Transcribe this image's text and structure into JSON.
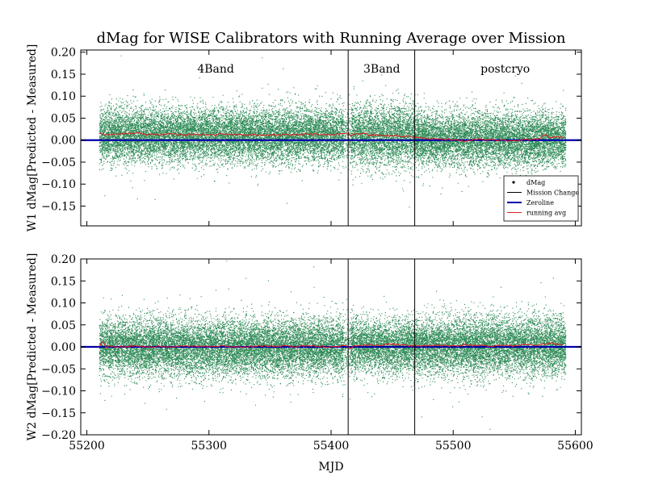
{
  "chart_data": {
    "title": "dMag for WISE Calibrators with Running Average over Mission",
    "xlabel": "MJD",
    "type": "scatter",
    "xlim": [
      55195,
      55605
    ],
    "x_ticks": [
      "55200",
      "55300",
      "55400",
      "55500",
      "55600"
    ],
    "mission_changes": [
      55414.0,
      55468.5
    ],
    "regions": [
      {
        "label": "4Band",
        "x": 55305
      },
      {
        "label": "3Band",
        "x": 55441
      },
      {
        "label": "postcryo",
        "x": 55537
      }
    ],
    "colors": {
      "dmag": "#2e8b57",
      "running_avg": "#dd2222",
      "zeroline": "#0000aa",
      "mission_change": "#000000"
    },
    "legend": {
      "placement": "lower-right",
      "entries": [
        {
          "label": "dMag",
          "style": "dmag"
        },
        {
          "label": "Mission Change",
          "style": "mission_change"
        },
        {
          "label": "Zeroline",
          "style": "zeroline"
        },
        {
          "label": "running avg",
          "style": "running_avg"
        }
      ]
    },
    "panels": [
      {
        "name": "w1",
        "ylabel": "W1 dMag[Predicted - Measured]",
        "ylim": [
          -0.195,
          0.205
        ],
        "y_ticks": [
          "0.20",
          "0.15",
          "0.10",
          "0.05",
          "0.00",
          "−0.05",
          "−0.10",
          "−0.15"
        ],
        "y_tick_values": [
          0.2,
          0.15,
          0.1,
          0.05,
          0.0,
          -0.05,
          -0.1,
          -0.15
        ],
        "show_legend": true,
        "show_region_labels": true,
        "show_x_tick_labels": false,
        "scatter_spread": [
          0.03,
          0.034,
          0.03
        ],
        "scatter_xrange": [
          55210,
          55592
        ],
        "running_avg": {
          "x": [
            55210,
            55215,
            55220,
            55230,
            55240,
            55250,
            55260,
            55270,
            55280,
            55290,
            55300,
            55310,
            55320,
            55330,
            55340,
            55350,
            55360,
            55370,
            55380,
            55390,
            55400,
            55410,
            55413,
            55416,
            55420,
            55425,
            55430,
            55440,
            55450,
            55460,
            55466,
            55470,
            55480,
            55490,
            55500,
            55510,
            55520,
            55530,
            55540,
            55550,
            55560,
            55570,
            55575,
            55580,
            55590
          ],
          "y": [
            0.015,
            0.012,
            0.013,
            0.014,
            0.016,
            0.013,
            0.012,
            0.014,
            0.012,
            0.013,
            0.012,
            0.014,
            0.013,
            0.012,
            0.011,
            0.012,
            0.013,
            0.012,
            0.014,
            0.012,
            0.013,
            0.015,
            0.016,
            0.01,
            0.014,
            0.015,
            0.012,
            0.011,
            0.01,
            0.009,
            0.008,
            0.006,
            0.003,
            0.003,
            0.001,
            -0.002,
            0.002,
            0.001,
            0.0,
            -0.001,
            0.002,
            0.003,
            0.012,
            0.006,
            0.006
          ]
        }
      },
      {
        "name": "w2",
        "ylabel": "W2 dMag[Predicted - Measured]",
        "ylim": [
          -0.2,
          0.2
        ],
        "y_ticks": [
          "0.20",
          "0.15",
          "0.10",
          "0.05",
          "0.00",
          "−0.05",
          "−0.10",
          "−0.15",
          "−0.20"
        ],
        "y_tick_values": [
          0.2,
          0.15,
          0.1,
          0.05,
          0.0,
          -0.05,
          -0.1,
          -0.15,
          -0.2
        ],
        "show_legend": false,
        "show_region_labels": false,
        "show_x_tick_labels": true,
        "scatter_spread": [
          0.032,
          0.03,
          0.032
        ],
        "scatter_xrange": [
          55210,
          55592
        ],
        "running_avg": {
          "x": [
            55210,
            55213,
            55216,
            55220,
            55230,
            55240,
            55250,
            55260,
            55270,
            55280,
            55290,
            55300,
            55310,
            55320,
            55330,
            55340,
            55350,
            55360,
            55370,
            55380,
            55390,
            55400,
            55410,
            55413,
            55416,
            55420,
            55430,
            55440,
            55450,
            55460,
            55470,
            55480,
            55490,
            55500,
            55510,
            55520,
            55530,
            55540,
            55550,
            55560,
            55570,
            55580,
            55590
          ],
          "y": [
            0.001,
            0.012,
            -0.002,
            0.001,
            0.0,
            0.002,
            -0.001,
            0.001,
            0.0,
            0.002,
            0.001,
            0.0,
            0.003,
            0.001,
            0.0,
            0.002,
            0.001,
            0.003,
            0.0,
            0.002,
            0.001,
            0.0,
            0.003,
            0.002,
            -0.004,
            0.003,
            0.004,
            0.003,
            0.006,
            0.004,
            0.002,
            0.003,
            0.002,
            0.002,
            0.004,
            0.003,
            0.002,
            0.004,
            0.003,
            0.005,
            0.004,
            0.008,
            0.005
          ]
        }
      }
    ]
  }
}
